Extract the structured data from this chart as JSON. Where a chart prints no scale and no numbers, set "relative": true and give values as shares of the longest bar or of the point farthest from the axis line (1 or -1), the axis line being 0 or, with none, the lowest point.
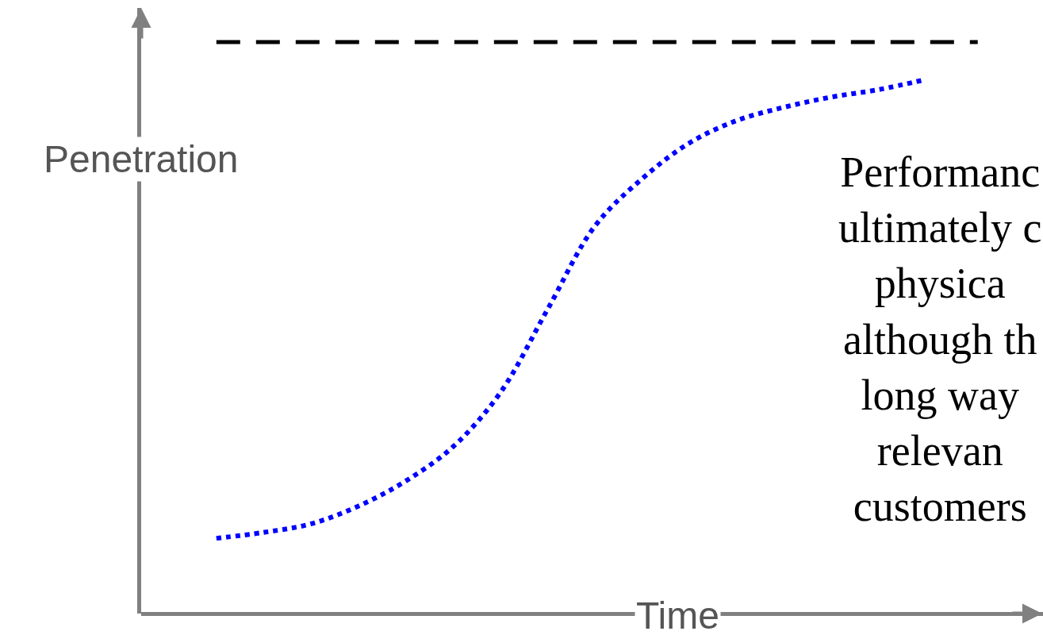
{
  "chart_data": {
    "type": "line",
    "relative": true,
    "xlabel": "Time",
    "ylabel": "Penetration",
    "categories": [
      null,
      null,
      null,
      null,
      null,
      null,
      null,
      null,
      null,
      null,
      null,
      null,
      null,
      null,
      null,
      null
    ],
    "series": [
      {
        "color": "#0000ff",
        "line_style": "dotted",
        "values": [
          0.141,
          0.152,
          0.168,
          0.201,
          0.248,
          0.312,
          0.413,
          0.569,
          0.725,
          0.814,
          0.881,
          0.923,
          0.948,
          0.967,
          0.981,
          1.0
        ]
      }
    ],
    "ref_lines": [
      {
        "axis": "y",
        "value": 1.07,
        "color": "#000000",
        "line_style": "dashed"
      }
    ],
    "annotations": [
      "Performanc\nultimately c\nphysica\nalthough th\nlong way\nrelevan\ncustomers"
    ],
    "marker": "none"
  }
}
